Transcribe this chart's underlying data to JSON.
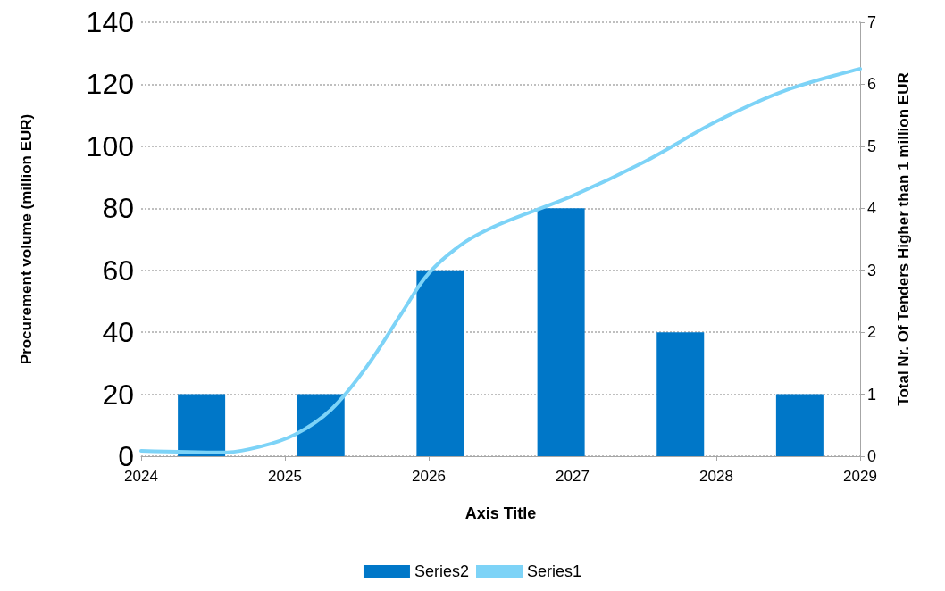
{
  "chart_data": {
    "type": "bar",
    "xlabel": "Axis Title",
    "ylabel": "Procurement volume (million EUR)",
    "y2label": "Total Nr. Of Tenders Higher than 1 million EUR",
    "xlim": [
      2024,
      2029
    ],
    "xticks": [
      2024,
      2025,
      2026,
      2027,
      2028,
      2029
    ],
    "ylim": [
      0,
      140
    ],
    "yticks": [
      0,
      20,
      40,
      60,
      80,
      100,
      120,
      140
    ],
    "y2lim": [
      0,
      7
    ],
    "y2ticks": [
      0,
      1,
      2,
      3,
      4,
      5,
      6,
      7
    ],
    "grid": "y",
    "legend": "bottom",
    "marker": "none",
    "line_style": "solid",
    "series": [
      {
        "name": "Series2",
        "axis": "y2",
        "color": "#0077c8",
        "x": [
          2024.42,
          2025.25,
          2026.08,
          2026.92,
          2027.75,
          2028.58
        ],
        "values": [
          1,
          1,
          3,
          4,
          2,
          1
        ]
      },
      {
        "name": "Series1",
        "type": "line",
        "axis": "y",
        "color": "#7dd3f7",
        "x": [
          2024,
          2024.57,
          2024.82,
          2025.07,
          2025.32,
          2025.57,
          2025.81,
          2026,
          2026.25,
          2026.5,
          2027,
          2027.5,
          2028,
          2028.48,
          2029
        ],
        "values": [
          1.7,
          1.2,
          3,
          7,
          15,
          29,
          46,
          59,
          69,
          75,
          84,
          95,
          108,
          118,
          125
        ]
      }
    ]
  }
}
